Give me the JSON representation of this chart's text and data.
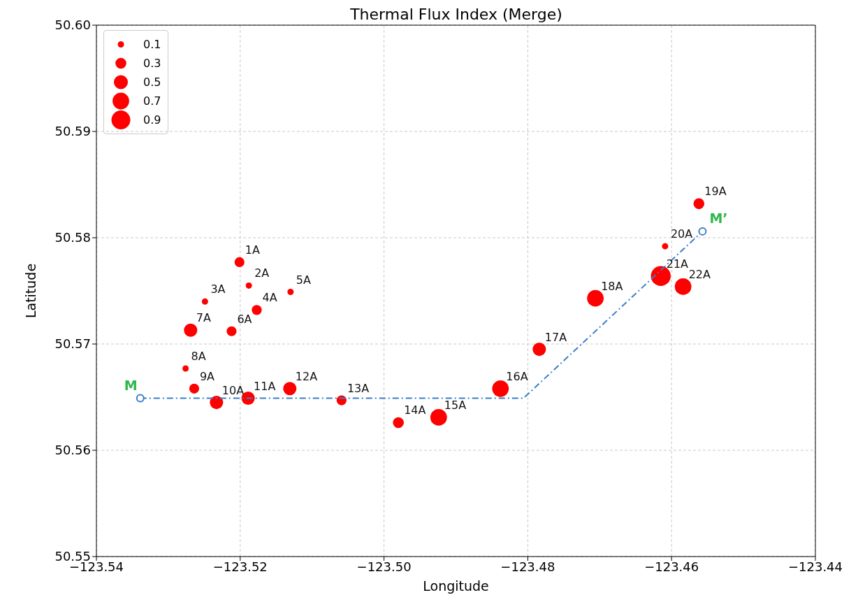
{
  "chart_data": {
    "type": "bubble",
    "title": "Thermal Flux Index (Merge)",
    "xlabel": "Longitude",
    "ylabel": "Latitude",
    "xlim": [
      -123.54,
      -123.44
    ],
    "xticks": [
      {
        "value": -123.54,
        "label": "−123.54"
      },
      {
        "value": -123.52,
        "label": "−123.52"
      },
      {
        "value": -123.5,
        "label": "−123.50"
      },
      {
        "value": -123.48,
        "label": "−123.48"
      },
      {
        "value": -123.46,
        "label": "−123.46"
      },
      {
        "value": -123.44,
        "label": "−123.44"
      }
    ],
    "ylim": [
      50.55,
      50.6
    ],
    "yticks": [
      {
        "value": 50.55,
        "label": "50.55"
      },
      {
        "value": 50.56,
        "label": "50.56"
      },
      {
        "value": 50.57,
        "label": "50.57"
      },
      {
        "value": 50.58,
        "label": "50.58"
      },
      {
        "value": 50.59,
        "label": "50.59"
      },
      {
        "value": 50.6,
        "label": "50.60"
      }
    ],
    "grid": true,
    "size_legend": [
      0.1,
      0.3,
      0.5,
      0.7,
      0.9
    ],
    "series": [
      {
        "type": "bubble",
        "color": "#ff0000",
        "x": [
          -123.5201,
          -123.5188,
          -123.5249,
          -123.5177,
          -123.513,
          -123.5212,
          -123.5269,
          -123.5276,
          -123.5264,
          -123.5233,
          -123.5189,
          -123.5131,
          -123.5059,
          -123.498,
          -123.4924,
          -123.4838,
          -123.4784,
          -123.4706,
          -123.4562,
          -123.4609,
          -123.4615,
          -123.4584
        ],
        "values": [
          50.5777,
          50.5755,
          50.574,
          50.5732,
          50.5749,
          50.5712,
          50.5713,
          50.5677,
          50.5658,
          50.5645,
          50.5649,
          50.5658,
          50.5647,
          50.5626,
          50.5631,
          50.5658,
          50.5695,
          50.5743,
          50.5832,
          50.5792,
          50.5764,
          50.5754
        ],
        "sizes": [
          0.25,
          0.1,
          0.1,
          0.25,
          0.1,
          0.25,
          0.45,
          0.1,
          0.25,
          0.45,
          0.45,
          0.45,
          0.25,
          0.3,
          0.7,
          0.7,
          0.45,
          0.7,
          0.3,
          0.1,
          1.0,
          0.7
        ]
      },
      {
        "type": "line",
        "color": "#3a7ec8",
        "line_style": "dashed",
        "marker": "none",
        "x": [
          -123.5339,
          -123.4806,
          -123.4557
        ],
        "values": [
          50.5649,
          50.5649,
          50.5806
        ]
      },
      {
        "type": "scatter",
        "color": "#3a7ec8",
        "marker": "circle",
        "x": [
          -123.5339,
          -123.4557
        ],
        "values": [
          50.5649,
          50.5806
        ]
      }
    ],
    "annotations": [
      {
        "text": "1A",
        "x": -123.5201,
        "y": 50.5777
      },
      {
        "text": "2A",
        "x": -123.5188,
        "y": 50.5755
      },
      {
        "text": "3A",
        "x": -123.5249,
        "y": 50.574
      },
      {
        "text": "4A",
        "x": -123.5177,
        "y": 50.5732
      },
      {
        "text": "5A",
        "x": -123.513,
        "y": 50.5749
      },
      {
        "text": "6A",
        "x": -123.5212,
        "y": 50.5712
      },
      {
        "text": "7A",
        "x": -123.5269,
        "y": 50.5713
      },
      {
        "text": "8A",
        "x": -123.5276,
        "y": 50.5677
      },
      {
        "text": "9A",
        "x": -123.5264,
        "y": 50.5658
      },
      {
        "text": "10A",
        "x": -123.5233,
        "y": 50.5645
      },
      {
        "text": "11A",
        "x": -123.5189,
        "y": 50.5649
      },
      {
        "text": "12A",
        "x": -123.5131,
        "y": 50.5658
      },
      {
        "text": "13A",
        "x": -123.5059,
        "y": 50.5647
      },
      {
        "text": "14A",
        "x": -123.498,
        "y": 50.5626
      },
      {
        "text": "15A",
        "x": -123.4924,
        "y": 50.5631
      },
      {
        "text": "16A",
        "x": -123.4838,
        "y": 50.5658
      },
      {
        "text": "17A",
        "x": -123.4784,
        "y": 50.5695
      },
      {
        "text": "18A",
        "x": -123.4706,
        "y": 50.5743
      },
      {
        "text": "19A",
        "x": -123.4562,
        "y": 50.5832
      },
      {
        "text": "20A",
        "x": -123.4609,
        "y": 50.5792
      },
      {
        "text": "21A",
        "x": -123.4615,
        "y": 50.5764
      },
      {
        "text": "22A",
        "x": -123.4584,
        "y": 50.5754
      },
      {
        "text": "M",
        "x": -123.5339,
        "y": 50.5649
      },
      {
        "text": "M’",
        "x": -123.4557,
        "y": 50.5806
      }
    ]
  }
}
